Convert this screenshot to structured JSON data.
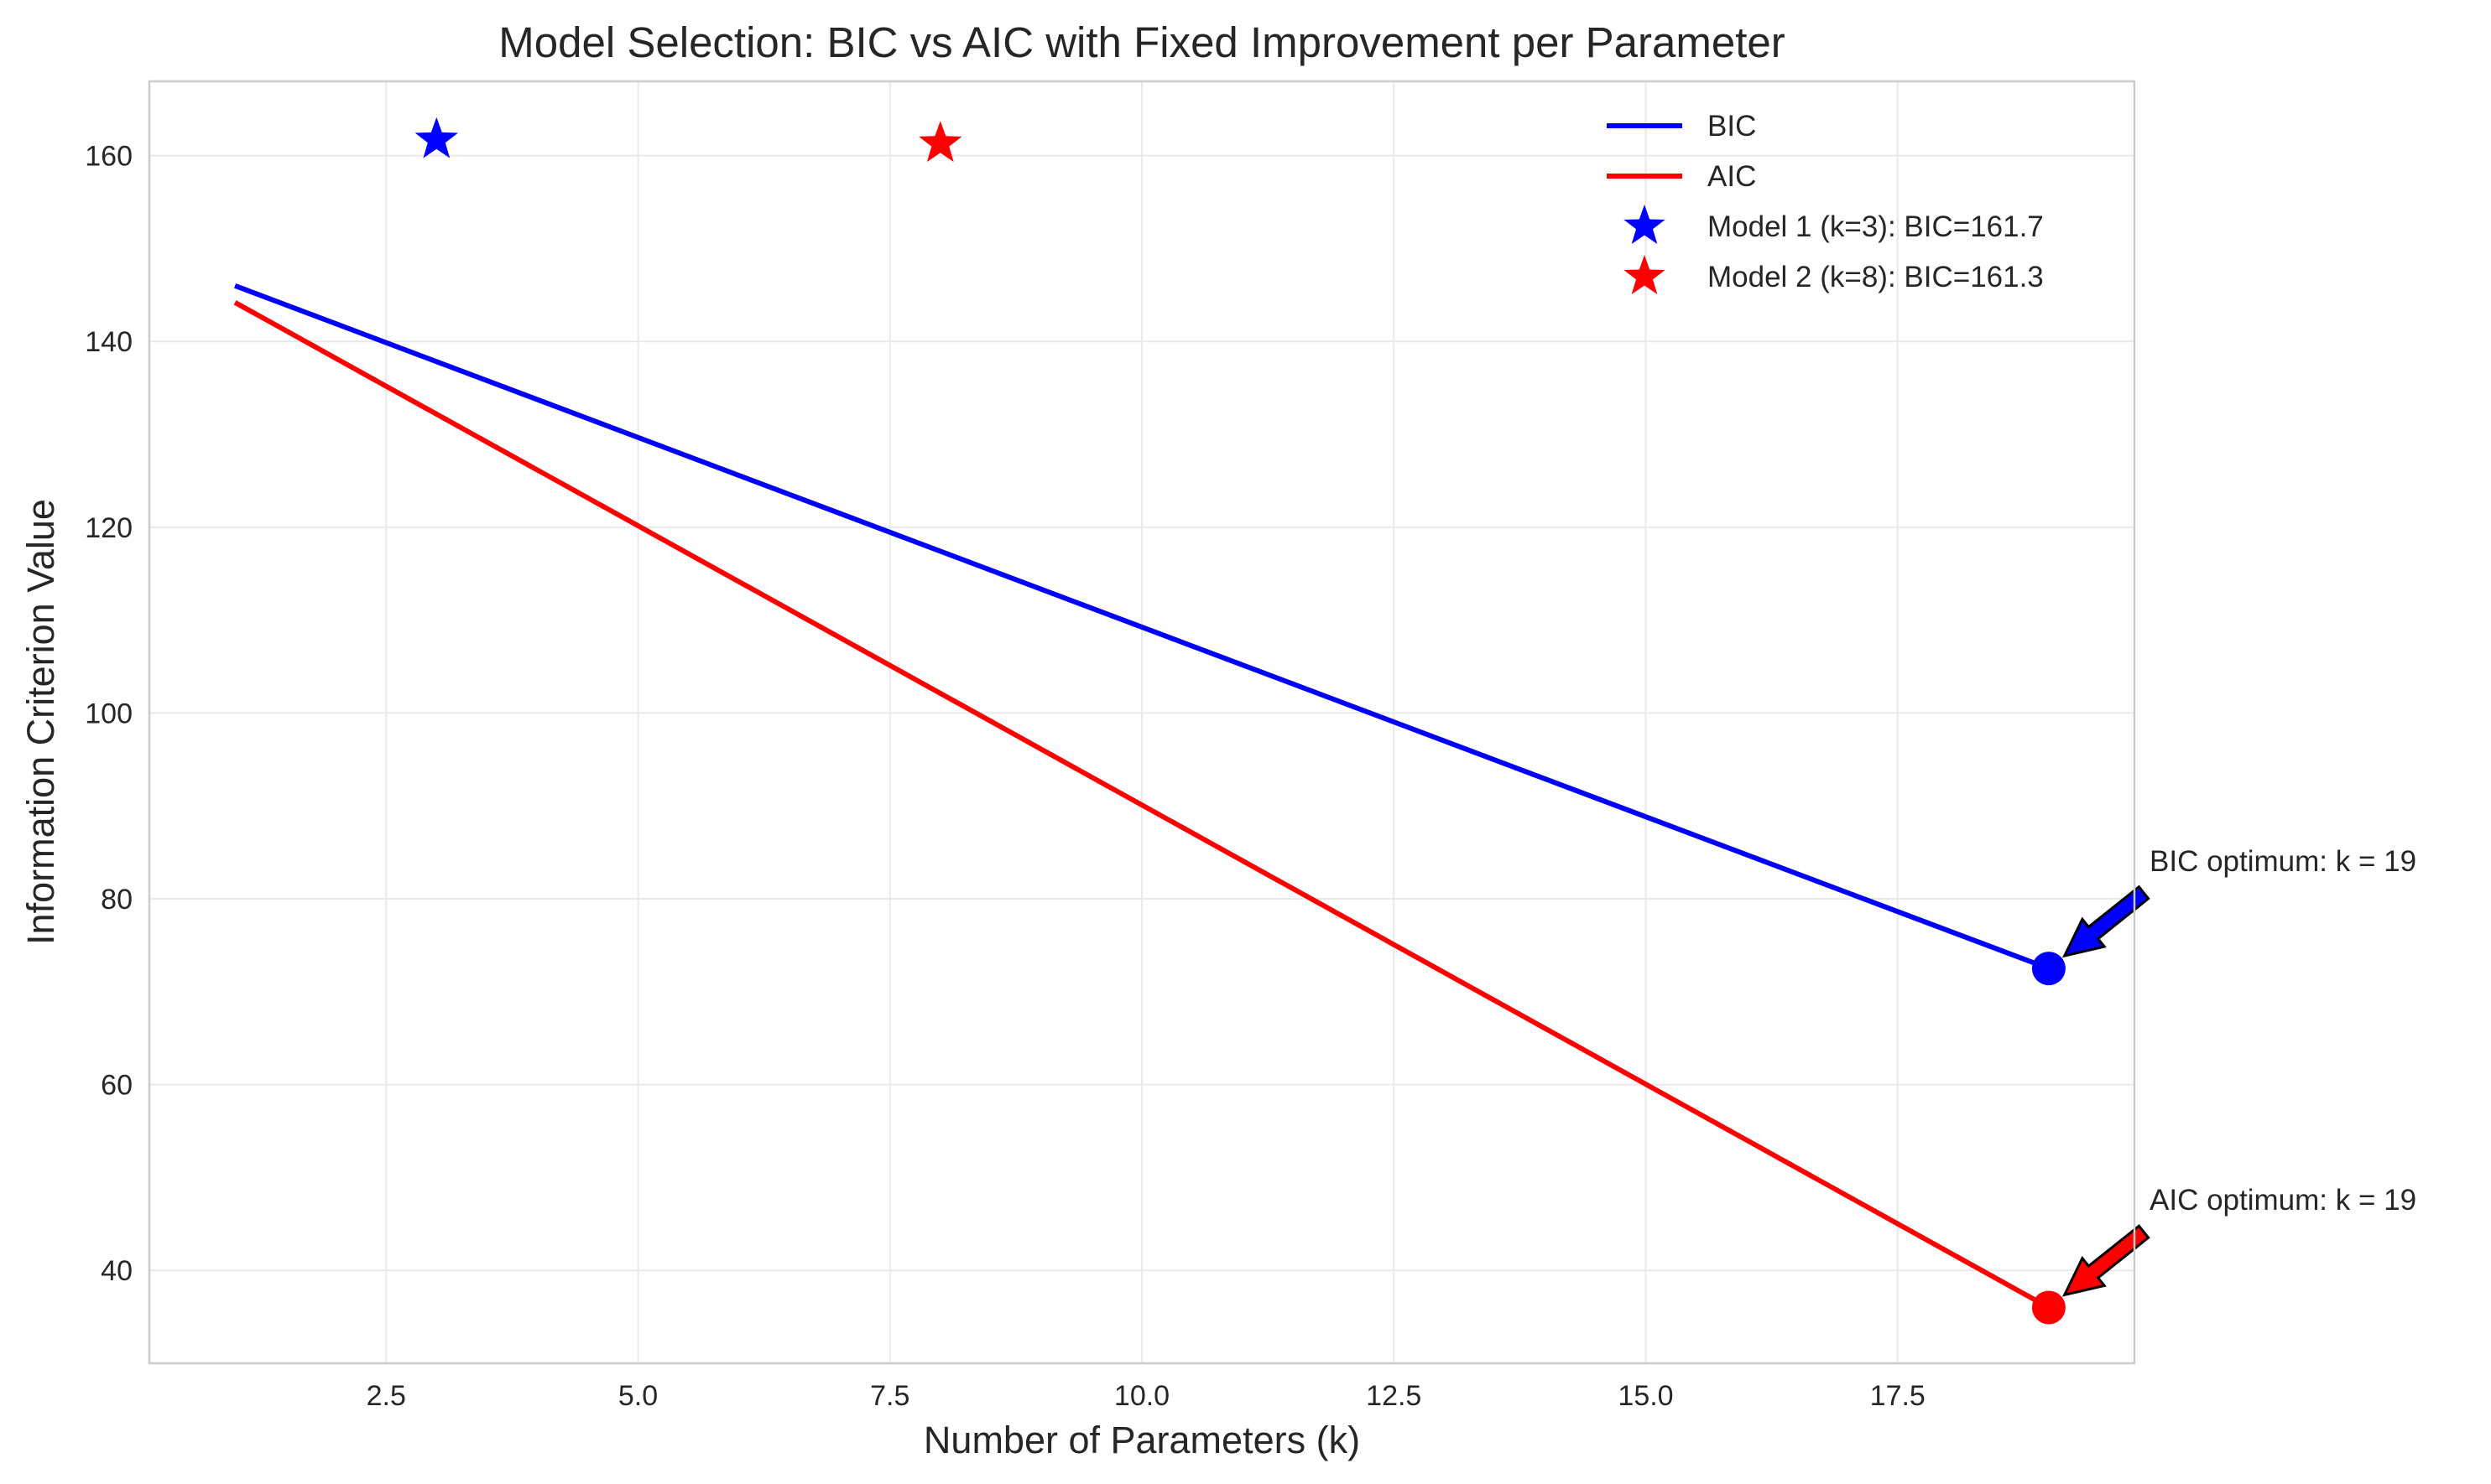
{
  "chart_data": {
    "type": "line",
    "title": "Model Selection: BIC vs AIC with Fixed Improvement per Parameter",
    "xlabel": "Number of Parameters (k)",
    "ylabel": "Information Criterion Value",
    "xlim": [
      0.15,
      19.85
    ],
    "ylim": [
      30,
      168
    ],
    "xticks": [
      2.5,
      5.0,
      7.5,
      10.0,
      12.5,
      15.0,
      17.5
    ],
    "xtick_labels": [
      "2.5",
      "5.0",
      "7.5",
      "10.0",
      "12.5",
      "15.0",
      "17.5"
    ],
    "yticks": [
      40,
      60,
      80,
      100,
      120,
      140,
      160
    ],
    "ytick_labels": [
      "40",
      "60",
      "80",
      "100",
      "120",
      "140",
      "160"
    ],
    "grid": true,
    "legend_position": "top-right",
    "series": [
      {
        "name": "BIC",
        "color": "#0000ff",
        "x": [
          1,
          19
        ],
        "y": [
          146.0,
          72.5
        ]
      },
      {
        "name": "AIC",
        "color": "#ff0000",
        "x": [
          1,
          19
        ],
        "y": [
          144.2,
          36.0
        ]
      }
    ],
    "markers": [
      {
        "name": "Model 1 (k=3): BIC=161.7",
        "color": "#0000ff",
        "shape": "star",
        "x": 3,
        "y": 161.7
      },
      {
        "name": "Model 2 (k=8): BIC=161.3",
        "color": "#ff0000",
        "shape": "star",
        "x": 8,
        "y": 161.3
      }
    ],
    "optima": [
      {
        "label": "BIC optimum: k = 19",
        "color": "#0000ff",
        "x": 19,
        "y": 72.5,
        "text_x": 20.0,
        "text_y": 83
      },
      {
        "label": "AIC optimum: k = 19",
        "color": "#ff0000",
        "x": 19,
        "y": 36.0,
        "text_x": 20.0,
        "text_y": 46.5
      }
    ]
  }
}
